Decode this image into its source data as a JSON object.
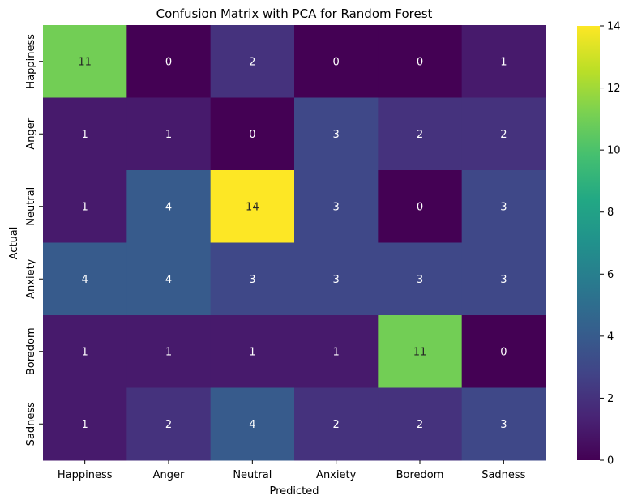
{
  "chart_data": {
    "type": "heatmap",
    "title": "Confusion Matrix with PCA for Random Forest",
    "xlabel": "Predicted",
    "ylabel": "Actual",
    "x_categories": [
      "Happiness",
      "Anger",
      "Neutral",
      "Anxiety",
      "Boredom",
      "Sadness"
    ],
    "y_categories": [
      "Happiness",
      "Anger",
      "Neutral",
      "Anxiety",
      "Boredom",
      "Sadness"
    ],
    "values": [
      [
        11,
        0,
        2,
        0,
        0,
        1
      ],
      [
        1,
        1,
        0,
        3,
        2,
        2
      ],
      [
        1,
        4,
        14,
        3,
        0,
        3
      ],
      [
        4,
        4,
        3,
        3,
        3,
        3
      ],
      [
        1,
        1,
        1,
        1,
        11,
        0
      ],
      [
        1,
        2,
        4,
        2,
        2,
        3
      ]
    ],
    "colormap": "viridis",
    "vmin": 0,
    "vmax": 14,
    "colorbar_ticks": [
      0,
      2,
      4,
      6,
      8,
      10,
      12,
      14
    ],
    "colorbar_tick_labels": [
      "0",
      "2",
      "4",
      "6",
      "8",
      "10",
      "12",
      "14"
    ],
    "legend": "right"
  }
}
